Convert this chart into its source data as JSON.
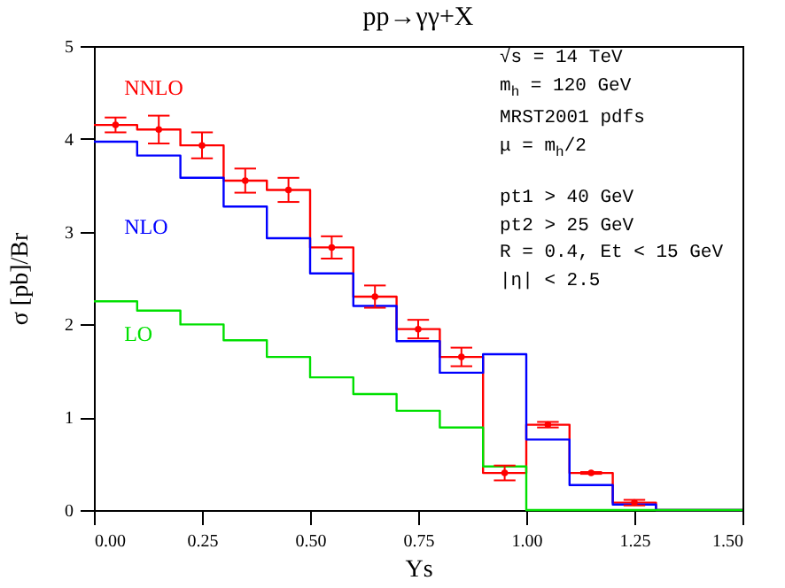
{
  "chart_data": {
    "type": "step",
    "title": "pp→γγ+X",
    "xlabel": "Ys",
    "ylabel": "σ [pb]/Br",
    "x": [
      0,
      0.1,
      0.2,
      0.3,
      0.4,
      0.5,
      0.6,
      0.7,
      0.8,
      0.9,
      1.0,
      1.1,
      1.2,
      1.3,
      1.4,
      1.5
    ],
    "series": [
      {
        "name": "NNLO",
        "color": "#ff0000",
        "values": [
          4.15,
          4.1,
          3.93,
          3.55,
          3.45,
          2.83,
          2.3,
          1.95,
          1.65,
          0.4,
          0.92,
          0.4,
          0.08,
          0,
          0,
          0
        ]
      },
      {
        "name": "NLO",
        "color": "#0000ff",
        "values": [
          3.97,
          3.82,
          3.58,
          3.27,
          2.93,
          2.55,
          2.2,
          1.82,
          1.48,
          1.68,
          0.76,
          0.27,
          0.06,
          0,
          0,
          0
        ]
      },
      {
        "name": "LO",
        "color": "#00e000",
        "values": [
          2.25,
          2.15,
          2.0,
          1.83,
          1.65,
          1.43,
          1.25,
          1.07,
          0.89,
          0.47,
          0,
          0,
          0,
          0,
          0,
          0
        ]
      },
      {
        "type": "scatter",
        "marker": "none",
        "color": "#ff0000",
        "x": [
          0.05,
          0.15,
          0.25,
          0.35,
          0.45,
          0.55,
          0.65,
          0.75,
          0.85,
          0.95,
          1.05,
          1.15,
          1.25
        ],
        "values": [
          4.15,
          4.1,
          3.93,
          3.55,
          3.45,
          2.83,
          2.3,
          1.95,
          1.65,
          0.4,
          0.92,
          0.4,
          0.08
        ],
        "errors": [
          0.08,
          0.15,
          0.14,
          0.13,
          0.13,
          0.12,
          0.12,
          0.1,
          0.1,
          0.08,
          0.03,
          0.01,
          0.03
        ]
      }
    ],
    "xlim": [
      0,
      1.5
    ],
    "xticks": [
      {
        "value": 0,
        "label": "0.00"
      },
      {
        "value": 0.25,
        "label": "0.25"
      },
      {
        "value": 0.5,
        "label": "0.50"
      },
      {
        "value": 0.75,
        "label": "0.75"
      },
      {
        "value": 1,
        "label": "1.00"
      },
      {
        "value": 1.25,
        "label": "1.25"
      },
      {
        "value": 1.5,
        "label": "1.50"
      }
    ],
    "ylim": [
      0,
      5
    ],
    "yticks": [
      0,
      1,
      2,
      3,
      4,
      5
    ],
    "annotations": [
      "√s = 14 TeV",
      "m$_{h}$ = 120 GeV",
      "MRST2001 pdfs",
      "μ = m$_{h}$/2",
      "pt1 > 40 GeV",
      "pt2 > 25 GeV",
      "R = 0.4, Et < 15 GeV",
      "|η| < 2.5"
    ],
    "grid": false,
    "legend": false
  }
}
